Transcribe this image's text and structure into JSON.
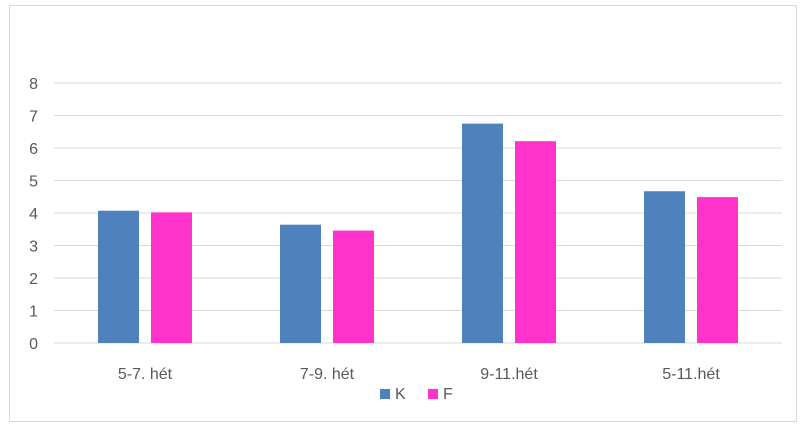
{
  "chart_data": {
    "type": "bar",
    "categories": [
      "5-7. hét",
      "7-9. hét",
      "9-11.hét",
      "5-11.hét"
    ],
    "series": [
      {
        "name": "K",
        "color": "#4f81bd",
        "values": [
          4.07,
          3.64,
          6.75,
          4.67
        ]
      },
      {
        "name": "F",
        "color": "#ff33cc",
        "values": [
          4.02,
          3.46,
          6.21,
          4.49
        ]
      }
    ],
    "ylim": [
      0,
      8
    ],
    "yticks": [
      "0",
      "1",
      "2",
      "3",
      "4",
      "5",
      "6",
      "7",
      "8"
    ],
    "grid": true,
    "legend_position": "bottom"
  }
}
